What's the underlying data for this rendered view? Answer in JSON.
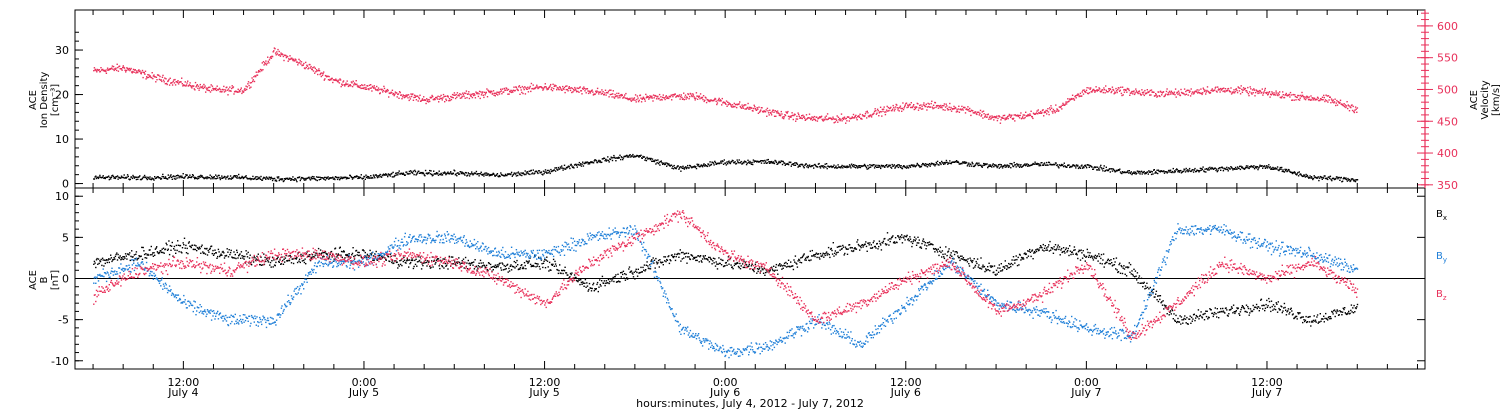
{
  "chart_data": [
    {
      "type": "scatter",
      "panel": "top",
      "ylabel_lines": [
        "ACE",
        "Ion Density",
        "[cm⁻³]"
      ],
      "ylabel_right_lines": [
        "ACE",
        "Velocity",
        "[km/s]"
      ],
      "ylim": [
        -1,
        39
      ],
      "ylim_right": [
        345,
        625
      ],
      "yticks": [
        0,
        10,
        20,
        30
      ],
      "yticks_right": [
        350,
        400,
        450,
        500,
        550,
        600
      ],
      "colors": {
        "density": "#000000",
        "velocity": "#e8305a"
      },
      "series": [
        {
          "key": "density",
          "color": "#000000",
          "axis": "left",
          "x": [
            0,
            3,
            6,
            9,
            12,
            15,
            18,
            21,
            24,
            27,
            30,
            33,
            36,
            39,
            42,
            45,
            48,
            51,
            54,
            57,
            60,
            63,
            66,
            69,
            72,
            75,
            78,
            81,
            84
          ],
          "y": [
            1.5,
            1.5,
            1.7,
            1.6,
            1.2,
            1.3,
            1.5,
            2.5,
            2.5,
            2.0,
            2.8,
            5.0,
            6.5,
            3.5,
            5.0,
            5.0,
            4.0,
            4.0,
            4.0,
            5.0,
            4.0,
            4.5,
            4.0,
            2.5,
            3.0,
            3.5,
            4.0,
            1.5,
            1.0
          ]
        },
        {
          "key": "velocity",
          "color": "#e8305a",
          "axis": "right",
          "x": [
            0,
            2,
            4,
            6,
            8,
            10,
            12,
            14,
            16,
            18,
            20,
            22,
            24,
            26,
            28,
            30,
            32,
            34,
            36,
            38,
            40,
            42,
            44,
            46,
            48,
            50,
            52,
            54,
            56,
            58,
            60,
            62,
            64,
            66,
            68,
            70,
            72,
            74,
            76,
            78,
            80,
            82,
            84
          ],
          "y": [
            530,
            535,
            520,
            510,
            500,
            500,
            560,
            540,
            515,
            505,
            495,
            485,
            490,
            495,
            500,
            505,
            500,
            495,
            485,
            490,
            490,
            480,
            470,
            460,
            455,
            455,
            465,
            475,
            475,
            470,
            455,
            460,
            470,
            500,
            500,
            495,
            495,
            500,
            500,
            495,
            490,
            485,
            470
          ]
        }
      ]
    },
    {
      "type": "scatter",
      "panel": "bottom",
      "ylabel_lines": [
        "ACE",
        "B",
        "[nT]"
      ],
      "ylim": [
        -11,
        11
      ],
      "yticks": [
        -10,
        -5,
        0,
        5,
        10
      ],
      "legend_position": "right",
      "series": [
        {
          "name": "Bx",
          "color": "#000000",
          "x": [
            0,
            3,
            6,
            9,
            12,
            15,
            18,
            21,
            24,
            27,
            30,
            33,
            36,
            39,
            42,
            45,
            48,
            51,
            54,
            57,
            60,
            63,
            66,
            69,
            72,
            75,
            78,
            81,
            84
          ],
          "y": [
            2,
            3,
            4,
            3,
            2,
            3,
            3,
            2,
            2,
            1.5,
            2,
            -1,
            1,
            3,
            2,
            1,
            3,
            4,
            5,
            3,
            1,
            4,
            3,
            1,
            -5,
            -4,
            -3,
            -5,
            -3.5
          ]
        },
        {
          "name": "By",
          "color": "#1f7fd8",
          "x": [
            0,
            3,
            6,
            9,
            12,
            15,
            18,
            21,
            24,
            27,
            30,
            33,
            36,
            39,
            42,
            45,
            48,
            51,
            54,
            57,
            60,
            63,
            66,
            69,
            72,
            75,
            78,
            81,
            84
          ],
          "y": [
            0,
            2,
            -3,
            -5,
            -5,
            2,
            2,
            5,
            5,
            3,
            3,
            5,
            6,
            -6,
            -9,
            -8,
            -5,
            -8,
            -3,
            2,
            -3,
            -4,
            -6,
            -7,
            6,
            6,
            4,
            3,
            1
          ]
        },
        {
          "name": "Bz",
          "color": "#e8305a",
          "x": [
            0,
            3,
            6,
            9,
            12,
            15,
            18,
            21,
            24,
            27,
            30,
            33,
            36,
            39,
            42,
            45,
            48,
            51,
            54,
            57,
            60,
            63,
            66,
            69,
            72,
            75,
            78,
            81,
            84
          ],
          "y": [
            -2,
            1,
            2,
            1,
            3,
            3,
            2,
            3,
            2,
            0,
            -3,
            2,
            5,
            8,
            3,
            1,
            -5,
            -3,
            0,
            2,
            -4,
            -2,
            2,
            -7,
            -3,
            2,
            0,
            2,
            -1.5
          ]
        }
      ]
    }
  ],
  "x_axis": {
    "tick_labels": [
      {
        "time": "12:00",
        "date": "July 4",
        "hours": 6
      },
      {
        "time": "0:00",
        "date": "July 5",
        "hours": 18
      },
      {
        "time": "12:00",
        "date": "July 5",
        "hours": 30
      },
      {
        "time": "0:00",
        "date": "July 6",
        "hours": 42
      },
      {
        "time": "12:00",
        "date": "July 6",
        "hours": 54
      },
      {
        "time": "0:00",
        "date": "July 7",
        "hours": 66
      },
      {
        "time": "12:00",
        "date": "July 7",
        "hours": 78
      }
    ],
    "title": "hours:minutes, July  4, 2012 - July  7, 2012",
    "range_hours": [
      0,
      84
    ]
  }
}
